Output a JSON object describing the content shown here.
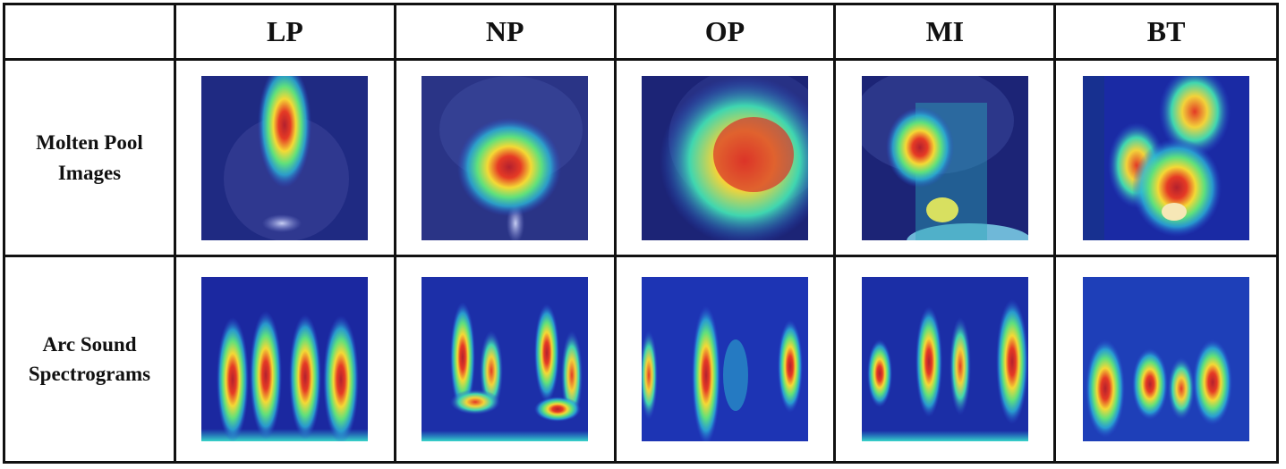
{
  "table": {
    "corner_label": "",
    "columns": [
      "LP",
      "NP",
      "OP",
      "MI",
      "BT"
    ],
    "rows": [
      {
        "label_line1": "Molten Pool",
        "label_line2": "Images"
      },
      {
        "label_line1": "Arc Sound",
        "label_line2": "Spectrograms"
      }
    ]
  },
  "colors": {
    "grid_line": "#111111",
    "heatmap_low": "#1c2476",
    "heatmap_mid": "#32d2c8",
    "heatmap_high": "#e0282a"
  }
}
